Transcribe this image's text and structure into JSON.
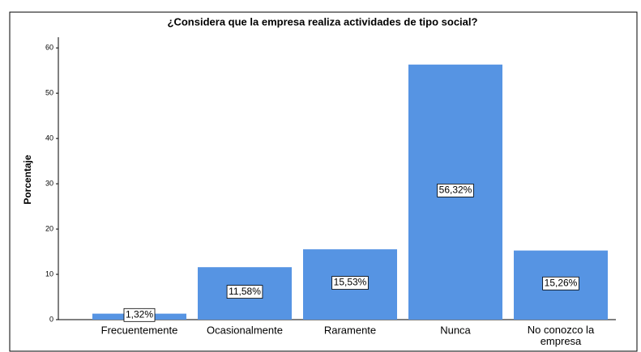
{
  "chart_data": {
    "type": "bar",
    "title": "¿Considera que la empresa realiza actividades de tipo social?",
    "y_label": "Porcentaje",
    "categories": [
      "Frecuentemente",
      "Ocasionalmente",
      "Raramente",
      "Nunca",
      "No conozco la empresa"
    ],
    "values": [
      1.32,
      11.58,
      15.53,
      56.32,
      15.26
    ],
    "value_labels": [
      "1,32%",
      "11,58%",
      "15,53%",
      "56,32%",
      "15,26%"
    ],
    "color": "#5694e3",
    "ylim": [
      0,
      62
    ],
    "yticks": [
      0,
      10,
      20,
      30,
      40,
      50,
      60
    ],
    "grid": false
  }
}
